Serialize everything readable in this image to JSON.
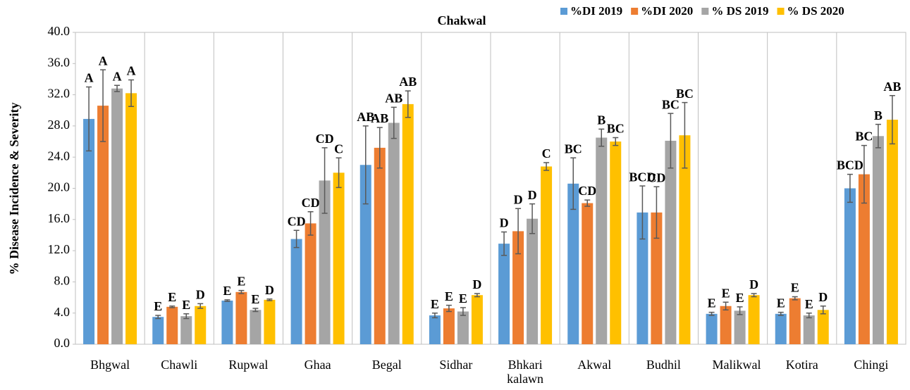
{
  "chart_data": {
    "type": "bar",
    "title": "Chakwal",
    "y_label": "% Disease Incidence & Severity",
    "categories": [
      "Bhgwal",
      "Chawli",
      "Rupwal",
      "Ghaa",
      "Begal",
      "Sidhar",
      "Bhkari kalawn",
      "Akwal",
      "Budhil",
      "Malikwal",
      "Kotira",
      "Chingi"
    ],
    "series": [
      {
        "name": "%DI 2019",
        "color": "#5b9bd5",
        "values": [
          28.9,
          3.5,
          5.6,
          13.5,
          23.0,
          3.7,
          12.9,
          20.6,
          16.9,
          3.9,
          3.9,
          20.0
        ],
        "errors": [
          4.1,
          0.2,
          0.1,
          1.1,
          5.0,
          0.3,
          1.5,
          3.3,
          3.4,
          0.2,
          0.2,
          1.8
        ],
        "letters": [
          "A",
          "E",
          "E",
          "CD",
          "AB",
          "E",
          "D",
          "BC",
          "BCD",
          "E",
          "E",
          "BCD"
        ]
      },
      {
        "name": "%DI 2020",
        "color": "#ed7d31",
        "values": [
          30.6,
          4.8,
          6.7,
          15.5,
          25.2,
          4.6,
          14.5,
          18.1,
          16.9,
          4.9,
          5.9,
          21.8
        ],
        "errors": [
          4.6,
          0.1,
          0.2,
          1.5,
          2.6,
          0.4,
          2.9,
          0.4,
          3.3,
          0.5,
          0.2,
          3.7
        ],
        "letters": [
          "A",
          "E",
          "E",
          "CD",
          "AB",
          "E",
          "D",
          "CD",
          "CD",
          "E",
          "E",
          "BC"
        ]
      },
      {
        "name": "% DS 2019",
        "color": "#a5a5a5",
        "values": [
          32.8,
          3.6,
          4.4,
          21.0,
          28.4,
          4.2,
          16.1,
          26.5,
          26.1,
          4.3,
          3.7,
          26.7
        ],
        "errors": [
          0.4,
          0.3,
          0.2,
          4.2,
          2.0,
          0.5,
          1.9,
          1.1,
          3.5,
          0.5,
          0.3,
          1.5
        ],
        "letters": [
          "A",
          "E",
          "E",
          "CD",
          "AB",
          "E",
          "D",
          "B",
          "BC",
          "E",
          "E",
          "B"
        ]
      },
      {
        "name": "% DS 2020",
        "color": "#ffc000",
        "values": [
          32.2,
          4.9,
          5.7,
          22.0,
          30.8,
          6.3,
          22.8,
          26.0,
          26.8,
          6.3,
          4.4,
          28.8
        ],
        "errors": [
          1.7,
          0.3,
          0.1,
          1.9,
          1.7,
          0.2,
          0.5,
          0.5,
          4.2,
          0.2,
          0.5,
          3.1
        ],
        "letters": [
          "A",
          "D",
          "D",
          "C",
          "AB",
          "D",
          "C",
          "BC",
          "BC",
          "D",
          "D",
          "AB"
        ]
      }
    ],
    "ylim": [
      0,
      40
    ],
    "yticks": [
      {
        "value": 0,
        "label": "0.0"
      },
      {
        "value": 4,
        "label": "4.0"
      },
      {
        "value": 8,
        "label": "8.0"
      },
      {
        "value": 12,
        "label": "12.0"
      },
      {
        "value": 16,
        "label": "16.0"
      },
      {
        "value": 20,
        "label": "20.0"
      },
      {
        "value": 24,
        "label": "24.0"
      },
      {
        "value": 28,
        "label": "28.0"
      },
      {
        "value": 32,
        "label": "32.0"
      },
      {
        "value": 36,
        "label": "36.0"
      },
      {
        "value": 40,
        "label": "40.0"
      }
    ],
    "legend": "top-right"
  }
}
